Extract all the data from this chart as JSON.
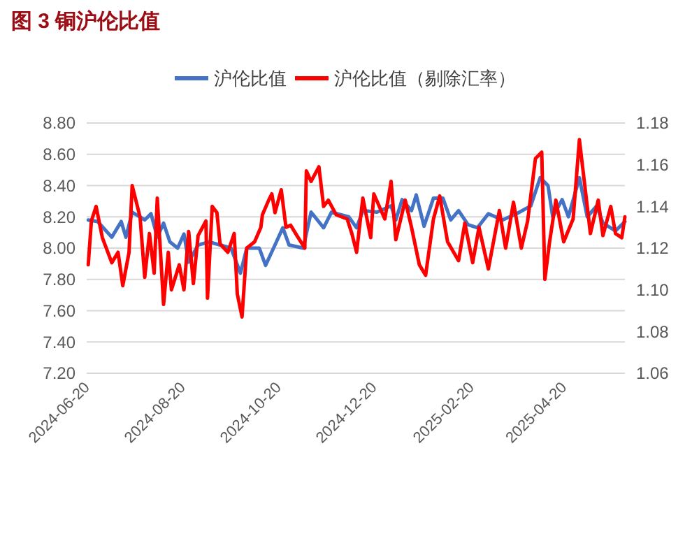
{
  "chart_data": {
    "type": "line",
    "title": "图 3 铜沪伦比值",
    "xlim": [
      "2024-06-20",
      "2025-05-29"
    ],
    "xticks": [
      {
        "value": "2024-06-20",
        "label": "2024-06-20"
      },
      {
        "value": "2024-08-20",
        "label": "2024-08-20"
      },
      {
        "value": "2024-10-20",
        "label": "2024-10-20"
      },
      {
        "value": "2024-12-20",
        "label": "2024-12-20"
      },
      {
        "value": "2025-02-20",
        "label": "2025-02-20"
      },
      {
        "value": "2025-04-20",
        "label": "2025-04-20"
      }
    ],
    "ylim": [
      7.2,
      8.8
    ],
    "yticks": [
      {
        "value": 7.2,
        "label": "7.20"
      },
      {
        "value": 7.4,
        "label": "7.40"
      },
      {
        "value": 7.6,
        "label": "7.60"
      },
      {
        "value": 7.8,
        "label": "7.80"
      },
      {
        "value": 8.0,
        "label": "8.00"
      },
      {
        "value": 8.2,
        "label": "8.20"
      },
      {
        "value": 8.4,
        "label": "8.40"
      },
      {
        "value": 8.6,
        "label": "8.60"
      },
      {
        "value": 8.8,
        "label": "8.80"
      }
    ],
    "y2lim": [
      1.06,
      1.18
    ],
    "y2ticks": [
      {
        "value": 1.06,
        "label": "1.06"
      },
      {
        "value": 1.08,
        "label": "1.08"
      },
      {
        "value": 1.1,
        "label": "1.10"
      },
      {
        "value": 1.12,
        "label": "1.12"
      },
      {
        "value": 1.14,
        "label": "1.14"
      },
      {
        "value": 1.16,
        "label": "1.16"
      },
      {
        "value": 1.18,
        "label": "1.18"
      }
    ],
    "grid": "y",
    "legend": "top",
    "marker": "none",
    "line_style": "solid",
    "series": [
      {
        "name": "沪伦比值",
        "color": "#4472c4",
        "x": [
          "2024-06-21",
          "2024-06-27",
          "2024-07-06",
          "2024-07-12",
          "2024-07-15",
          "2024-07-19",
          "2024-07-27",
          "2024-07-31",
          "2024-08-04",
          "2024-08-08",
          "2024-08-12",
          "2024-08-17",
          "2024-08-21",
          "2024-08-24",
          "2024-08-30",
          "2024-09-06",
          "2024-09-13",
          "2024-09-20",
          "2024-09-26",
          "2024-09-30",
          "2024-10-08",
          "2024-10-12",
          "2024-10-18",
          "2024-10-23",
          "2024-10-27",
          "2024-11-05",
          "2024-11-10",
          "2024-11-18",
          "2024-11-23",
          "2024-12-04",
          "2024-12-09",
          "2024-12-13",
          "2024-12-22",
          "2024-12-31",
          "2025-01-03",
          "2025-01-07",
          "2025-01-13",
          "2025-01-16",
          "2025-01-21",
          "2025-01-27",
          "2025-02-02",
          "2025-02-07",
          "2025-02-12",
          "2025-02-18",
          "2025-02-24",
          "2025-03-03",
          "2025-03-12",
          "2025-03-21",
          "2025-03-30",
          "2025-04-05",
          "2025-04-10",
          "2025-04-13",
          "2025-04-19",
          "2025-04-23",
          "2025-04-30",
          "2025-05-05",
          "2025-05-11",
          "2025-05-15",
          "2025-05-23",
          "2025-05-29"
        ],
        "values": [
          8.18,
          8.17,
          8.07,
          8.17,
          8.07,
          8.23,
          8.18,
          8.22,
          8.07,
          8.16,
          8.04,
          8.0,
          8.09,
          7.91,
          8.02,
          8.04,
          8.02,
          8.0,
          7.84,
          8.0,
          8.0,
          7.89,
          8.02,
          8.13,
          8.02,
          8.0,
          8.23,
          8.13,
          8.23,
          8.2,
          8.13,
          8.24,
          8.23,
          8.27,
          8.18,
          8.31,
          8.24,
          8.34,
          8.14,
          8.32,
          8.32,
          8.18,
          8.24,
          8.15,
          8.13,
          8.22,
          8.18,
          8.22,
          8.27,
          8.45,
          8.4,
          8.2,
          8.31,
          8.2,
          8.45,
          8.2,
          8.27,
          8.16,
          8.11,
          8.17
        ]
      },
      {
        "name": "沪伦比值（剔除汇率）",
        "color": "#ff0000",
        "axis": "y2",
        "x": [
          "2024-06-21",
          "2024-06-23",
          "2024-06-26",
          "2024-06-30",
          "2024-07-06",
          "2024-07-10",
          "2024-07-13",
          "2024-07-17",
          "2024-07-19",
          "2024-07-24",
          "2024-07-27",
          "2024-07-30",
          "2024-08-02",
          "2024-08-04",
          "2024-08-08",
          "2024-08-11",
          "2024-08-13",
          "2024-08-18",
          "2024-08-21",
          "2024-08-24",
          "2024-08-27",
          "2024-08-30",
          "2024-09-04",
          "2024-09-05",
          "2024-09-08",
          "2024-09-11",
          "2024-09-13",
          "2024-09-18",
          "2024-09-22",
          "2024-09-24",
          "2024-09-27",
          "2024-09-30",
          "2024-10-05",
          "2024-10-09",
          "2024-10-10",
          "2024-10-14",
          "2024-10-16",
          "2024-10-18",
          "2024-10-22",
          "2024-10-25",
          "2024-10-28",
          "2024-11-01",
          "2024-11-06",
          "2024-11-07",
          "2024-11-10",
          "2024-11-15",
          "2024-11-18",
          "2024-11-21",
          "2024-11-26",
          "2024-12-03",
          "2024-12-06",
          "2024-12-09",
          "2024-12-13",
          "2024-12-18",
          "2024-12-20",
          "2024-12-27",
          "2024-12-31",
          "2025-01-03",
          "2025-01-09",
          "2025-01-13",
          "2025-01-18",
          "2025-01-22",
          "2025-01-27",
          "2025-01-31",
          "2025-02-05",
          "2025-02-12",
          "2025-02-16",
          "2025-02-21",
          "2025-02-25",
          "2025-03-03",
          "2025-03-10",
          "2025-03-14",
          "2025-03-19",
          "2025-03-24",
          "2025-03-28",
          "2025-04-02",
          "2025-04-06",
          "2025-04-08",
          "2025-04-11",
          "2025-04-15",
          "2025-04-20",
          "2025-04-26",
          "2025-04-30",
          "2025-05-05",
          "2025-05-07",
          "2025-05-12",
          "2025-05-15",
          "2025-05-20",
          "2025-05-23",
          "2025-05-27",
          "2025-05-29"
        ],
        "values": [
          1.112,
          1.133,
          1.14,
          1.125,
          1.113,
          1.118,
          1.102,
          1.118,
          1.15,
          1.135,
          1.106,
          1.127,
          1.108,
          1.144,
          1.093,
          1.118,
          1.1,
          1.112,
          1.1,
          1.128,
          1.103,
          1.126,
          1.133,
          1.096,
          1.14,
          1.137,
          1.122,
          1.118,
          1.127,
          1.098,
          1.087,
          1.12,
          1.123,
          1.13,
          1.136,
          1.143,
          1.146,
          1.137,
          1.148,
          1.13,
          1.131,
          1.126,
          1.12,
          1.157,
          1.152,
          1.159,
          1.14,
          1.143,
          1.136,
          1.134,
          1.127,
          1.118,
          1.144,
          1.125,
          1.146,
          1.134,
          1.152,
          1.124,
          1.143,
          1.13,
          1.112,
          1.107,
          1.134,
          1.145,
          1.123,
          1.114,
          1.132,
          1.113,
          1.13,
          1.11,
          1.138,
          1.12,
          1.142,
          1.12,
          1.133,
          1.163,
          1.166,
          1.105,
          1.123,
          1.143,
          1.123,
          1.134,
          1.172,
          1.14,
          1.127,
          1.143,
          1.126,
          1.14,
          1.127,
          1.125,
          1.135
        ]
      }
    ]
  }
}
